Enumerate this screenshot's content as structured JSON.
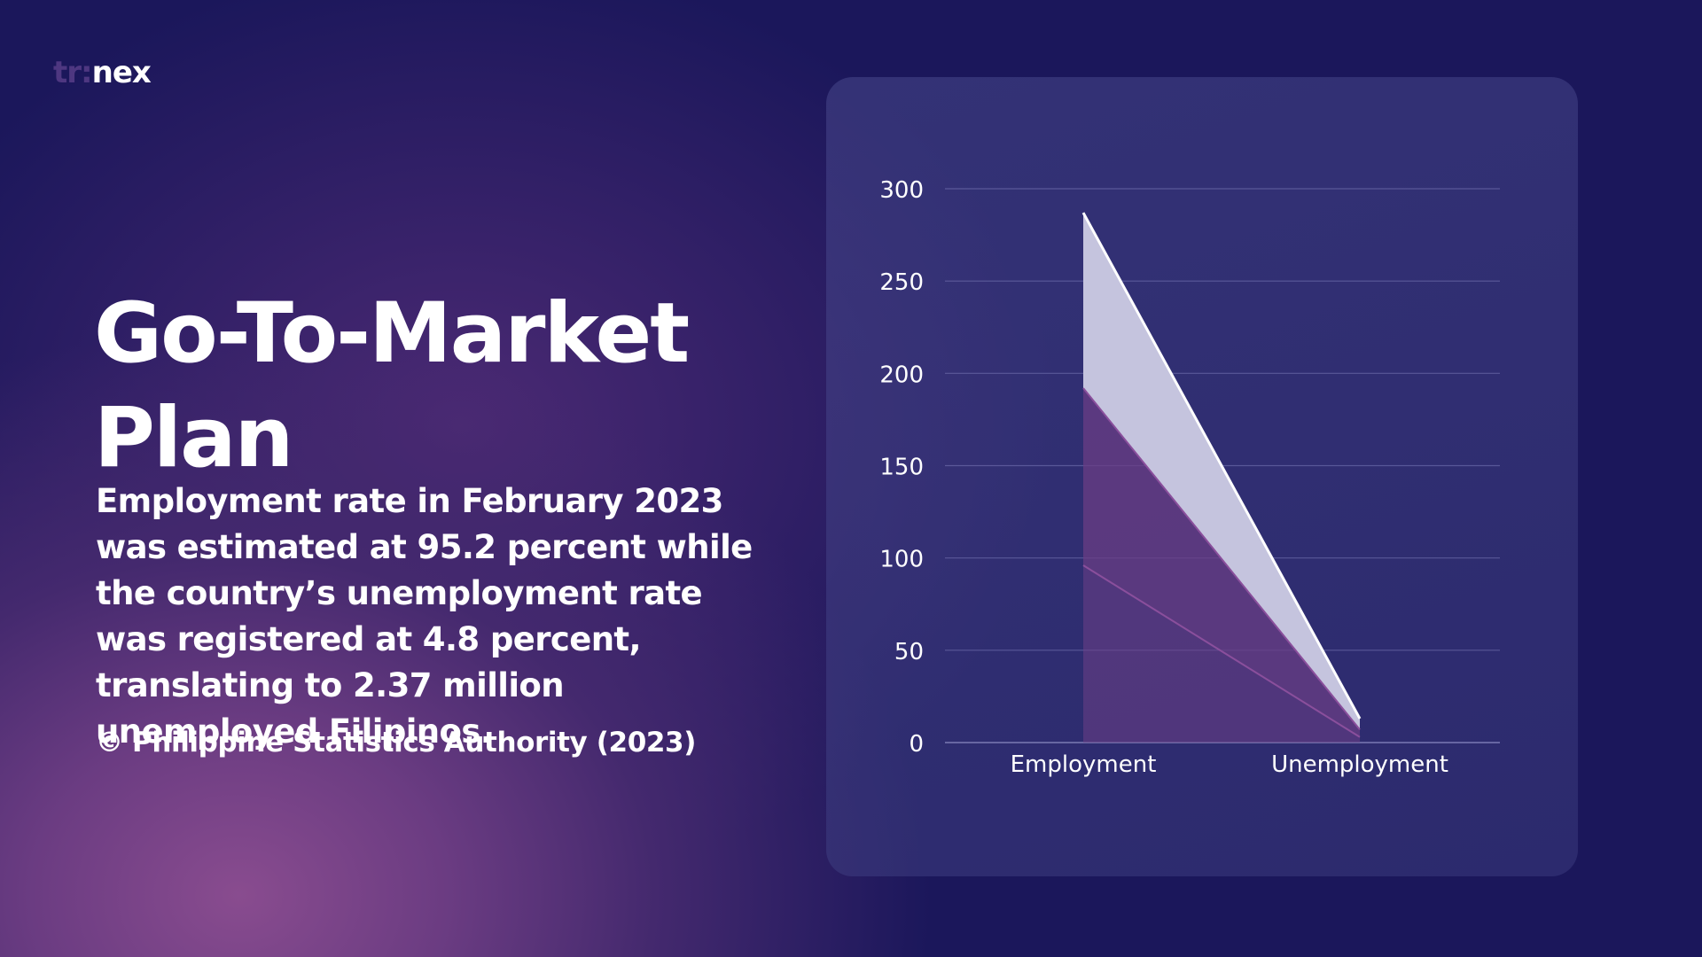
{
  "brand": {
    "logo_part1": "tr:",
    "logo_part2": "nex"
  },
  "heading": "Go-To-Market Plan",
  "description": "Employment rate in February 2023 was estimated at 95.2 percent while the country’s unemployment rate was registered at 4.8 percent, translating to 2.37 million unemployed Filipinos.",
  "source": "© Philippine Statistics Authority (2023)",
  "colors": {
    "background": "#1b175b",
    "accent_purple": "#6b3c82",
    "area_light": "#c5c4de",
    "area_purple": "#6a3d84",
    "text": "#ffffff"
  },
  "chart_data": {
    "type": "area",
    "stacked": true,
    "categories": [
      "Employment",
      "Unemployment"
    ],
    "series": [
      {
        "values": [
          96,
          3
        ],
        "color": "#6e3f86"
      },
      {
        "values": [
          96,
          4
        ],
        "color": "#6a3d84"
      },
      {
        "values": [
          95,
          6
        ],
        "color": "#c5c4de"
      }
    ],
    "ylim": [
      0,
      300
    ],
    "yticks": [
      0,
      50,
      100,
      150,
      200,
      250,
      300
    ],
    "grid": true,
    "xlabel": "",
    "ylabel": "",
    "title": ""
  }
}
